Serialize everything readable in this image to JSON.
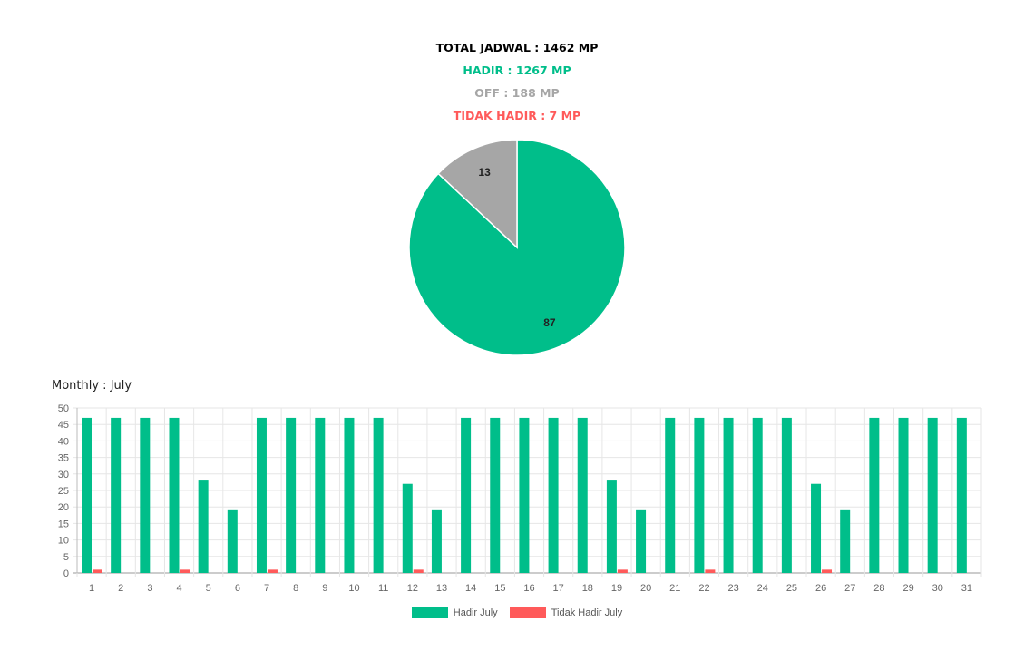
{
  "summary": {
    "total": "TOTAL JADWAL : 1462 MP",
    "hadir": "HADIR : 1267 MP",
    "off": "OFF : 188 MP",
    "tidak_hadir": "TIDAK HADIR : 7 MP"
  },
  "colors": {
    "hadir": "#00be8a",
    "off": "#a6a6a6",
    "tidak_hadir": "#ff5a5a",
    "total": "#000000"
  },
  "monthly_title": "Monthly : July",
  "chart_data": [
    {
      "type": "pie",
      "slices": [
        {
          "category": "hadir",
          "value": 87,
          "label": "87"
        },
        {
          "category": "off",
          "value": 13,
          "label": "13"
        }
      ]
    },
    {
      "type": "bar",
      "categories": [
        "1",
        "2",
        "3",
        "4",
        "5",
        "6",
        "7",
        "8",
        "9",
        "10",
        "11",
        "12",
        "13",
        "14",
        "15",
        "16",
        "17",
        "18",
        "19",
        "20",
        "21",
        "22",
        "23",
        "24",
        "25",
        "26",
        "27",
        "28",
        "29",
        "30",
        "31"
      ],
      "series": [
        {
          "name": "Hadir July",
          "color": "#00be8a",
          "values": [
            47,
            47,
            47,
            47,
            28,
            19,
            47,
            47,
            47,
            47,
            47,
            27,
            19,
            47,
            47,
            47,
            47,
            47,
            28,
            19,
            47,
            47,
            47,
            47,
            47,
            27,
            19,
            47,
            47,
            47,
            47
          ]
        },
        {
          "name": "Tidak Hadir July",
          "color": "#ff5a5a",
          "values": [
            1,
            0,
            0,
            1,
            0,
            0,
            1,
            0,
            0,
            0,
            0,
            1,
            0,
            0,
            0,
            0,
            0,
            0,
            1,
            0,
            0,
            1,
            0,
            0,
            0,
            1,
            0,
            0,
            0,
            0,
            0
          ]
        }
      ],
      "ylim": [
        0,
        50
      ],
      "yticks": [
        0,
        5,
        10,
        15,
        20,
        25,
        30,
        35,
        40,
        45,
        50
      ],
      "grid": true,
      "legend_position": "bottom"
    }
  ]
}
